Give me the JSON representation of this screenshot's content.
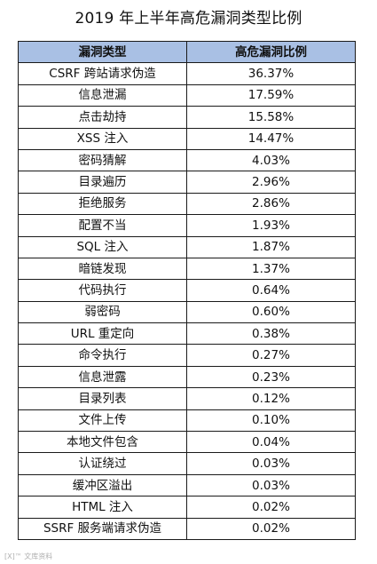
{
  "title": "2019 年上半年高危漏洞类型比例",
  "table": {
    "headers": [
      "漏洞类型",
      "高危漏洞比例"
    ],
    "rows": [
      [
        "CSRF 跨站请求伪造",
        "36.37%"
      ],
      [
        "信息泄漏",
        "17.59%"
      ],
      [
        "点击劫持",
        "15.58%"
      ],
      [
        "XSS 注入",
        "14.47%"
      ],
      [
        "密码猜解",
        "4.03%"
      ],
      [
        "目录遍历",
        "2.96%"
      ],
      [
        "拒绝服务",
        "2.86%"
      ],
      [
        "配置不当",
        "1.93%"
      ],
      [
        "SQL 注入",
        "1.87%"
      ],
      [
        "暗链发现",
        "1.37%"
      ],
      [
        "代码执行",
        "0.64%"
      ],
      [
        "弱密码",
        "0.60%"
      ],
      [
        "URL 重定向",
        "0.38%"
      ],
      [
        "命令执行",
        "0.27%"
      ],
      [
        "信息泄露",
        "0.23%"
      ],
      [
        "目录列表",
        "0.12%"
      ],
      [
        "文件上传",
        "0.10%"
      ],
      [
        "本地文件包含",
        "0.04%"
      ],
      [
        "认证绕过",
        "0.03%"
      ],
      [
        "缓冲区溢出",
        "0.03%"
      ],
      [
        "HTML 注入",
        "0.02%"
      ],
      [
        "SSRF 服务端请求伪造",
        "0.02%"
      ]
    ]
  },
  "watermark": "[X]™ 文库资料",
  "colors": {
    "header_bg": "#a9c0e4",
    "border": "#1a1a1a"
  }
}
